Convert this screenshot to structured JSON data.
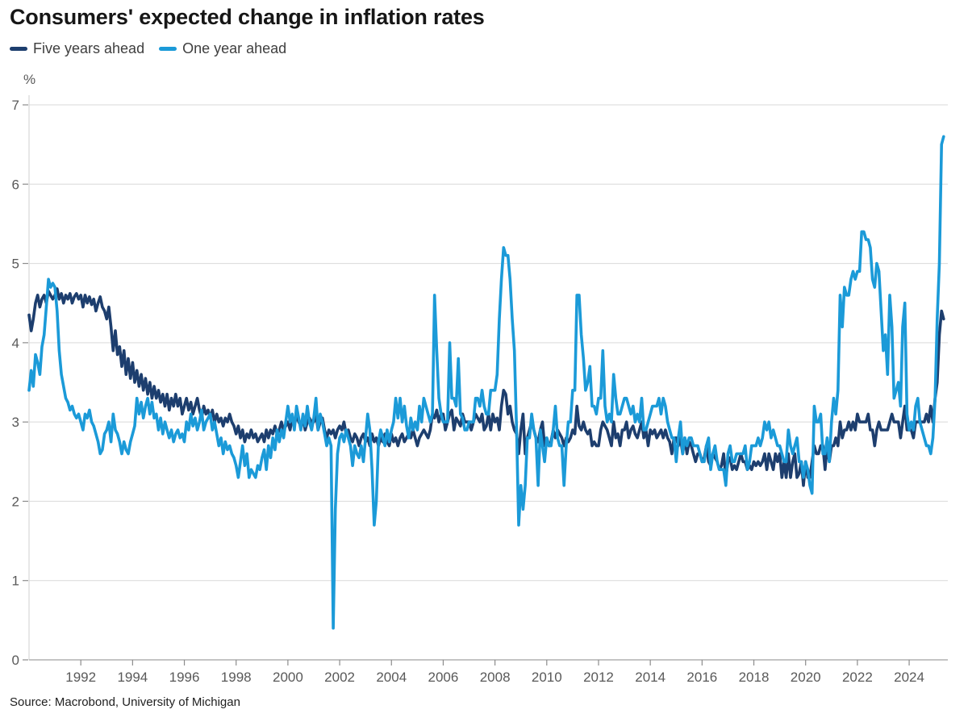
{
  "header": {
    "title": "Consumers' expected change in inflation rates"
  },
  "footer": {
    "source": "Source: Macrobond, University of Michigan"
  },
  "chart_data": {
    "type": "line",
    "title": "Consumers' expected change in inflation rates",
    "unit_label": "%",
    "source": "Source: Macrobond, University of Michigan",
    "legend_position": "top-left",
    "grid": "horizontal",
    "x_axis": {
      "min": 1990,
      "max": 2025.6,
      "ticks": [
        1992,
        1994,
        1996,
        1998,
        2000,
        2002,
        2004,
        2006,
        2008,
        2010,
        2012,
        2014,
        2016,
        2018,
        2020,
        2022,
        2024
      ]
    },
    "y_axis": {
      "min": 0,
      "max": 7,
      "label": "%",
      "ticks": [
        0,
        1,
        2,
        3,
        4,
        5,
        6,
        7
      ]
    },
    "series": [
      {
        "name": "Five years ahead",
        "color": "#1d3e6e",
        "start_year": 1990,
        "frequency": "monthly",
        "values": [
          4.35,
          4.15,
          4.3,
          4.5,
          4.6,
          4.45,
          4.55,
          4.6,
          4.5,
          4.65,
          4.6,
          4.55,
          4.6,
          4.68,
          4.55,
          4.62,
          4.5,
          4.6,
          4.55,
          4.62,
          4.5,
          4.58,
          4.62,
          4.55,
          4.6,
          4.45,
          4.6,
          4.5,
          4.58,
          4.48,
          4.55,
          4.4,
          4.5,
          4.58,
          4.45,
          4.4,
          4.3,
          4.45,
          4.2,
          3.9,
          4.15,
          3.85,
          3.95,
          3.7,
          3.9,
          3.6,
          3.8,
          3.55,
          3.75,
          3.5,
          3.65,
          3.45,
          3.6,
          3.4,
          3.55,
          3.35,
          3.5,
          3.3,
          3.45,
          3.3,
          3.4,
          3.25,
          3.35,
          3.2,
          3.35,
          3.15,
          3.3,
          3.2,
          3.35,
          3.2,
          3.3,
          3.1,
          3.2,
          3.3,
          3.15,
          3.25,
          3.1,
          3.2,
          3.3,
          3.15,
          3.05,
          3.2,
          3.1,
          3.15,
          3.05,
          3.15,
          3.0,
          3.1,
          3.0,
          3.05,
          2.95,
          3.05,
          3.0,
          3.1,
          3.0,
          2.95,
          2.85,
          2.95,
          2.8,
          2.9,
          2.75,
          2.85,
          2.8,
          2.9,
          2.8,
          2.85,
          2.75,
          2.8,
          2.85,
          2.75,
          2.9,
          2.8,
          2.9,
          2.85,
          2.95,
          2.85,
          2.9,
          3.0,
          2.9,
          2.95,
          3.0,
          2.9,
          3.05,
          2.95,
          3.1,
          3.0,
          2.95,
          3.05,
          2.9,
          3.0,
          3.05,
          3.0,
          3.0,
          3.1,
          2.9,
          3.0,
          3.05,
          2.9,
          2.8,
          2.9,
          2.85,
          2.9,
          2.8,
          2.9,
          2.95,
          2.9,
          3.0,
          2.85,
          2.9,
          2.8,
          2.75,
          2.85,
          2.8,
          2.7,
          2.8,
          2.85,
          2.75,
          2.8,
          2.7,
          2.85,
          2.75,
          2.8,
          2.7,
          2.8,
          2.75,
          2.85,
          2.75,
          2.7,
          2.85,
          2.75,
          2.8,
          2.7,
          2.8,
          2.85,
          2.75,
          2.8,
          2.85,
          2.8,
          2.9,
          2.8,
          2.7,
          2.8,
          2.85,
          2.9,
          2.85,
          2.8,
          2.9,
          3.1,
          3.05,
          3.15,
          3.0,
          3.1,
          3.1,
          2.9,
          3.0,
          3.1,
          3.15,
          2.9,
          3.05,
          3.0,
          2.95,
          3.1,
          3.0,
          3.0,
          3.0,
          2.9,
          3.0,
          3.1,
          3.05,
          3.0,
          3.1,
          2.9,
          2.95,
          3.1,
          2.9,
          3.1,
          3.0,
          3.05,
          2.9,
          3.2,
          3.4,
          3.35,
          3.1,
          3.2,
          3.0,
          2.9,
          2.85,
          2.6,
          2.9,
          3.1,
          2.6,
          2.8,
          2.9,
          3.0,
          2.9,
          2.8,
          2.75,
          2.9,
          3.0,
          2.7,
          2.8,
          2.7,
          2.75,
          2.9,
          2.8,
          2.9,
          2.85,
          2.8,
          2.7,
          2.8,
          2.75,
          2.8,
          2.9,
          2.85,
          3.2,
          2.95,
          2.9,
          3.0,
          2.9,
          2.85,
          2.9,
          2.7,
          2.75,
          2.7,
          2.7,
          2.9,
          3.0,
          2.95,
          2.9,
          2.8,
          2.7,
          3.0,
          2.8,
          2.85,
          2.7,
          2.9,
          2.9,
          3.0,
          2.8,
          2.9,
          2.95,
          2.85,
          2.8,
          2.9,
          3.0,
          2.8,
          2.9,
          2.7,
          2.9,
          2.85,
          2.9,
          2.8,
          2.85,
          2.9,
          2.8,
          2.9,
          2.8,
          2.75,
          2.6,
          2.8,
          2.8,
          2.7,
          2.8,
          2.6,
          2.8,
          2.6,
          2.75,
          2.7,
          2.6,
          2.5,
          2.6,
          2.6,
          2.5,
          2.55,
          2.7,
          2.5,
          2.45,
          2.6,
          2.55,
          2.5,
          2.4,
          2.45,
          2.6,
          2.3,
          2.5,
          2.55,
          2.4,
          2.45,
          2.4,
          2.5,
          2.6,
          2.5,
          2.5,
          2.4,
          2.45,
          2.4,
          2.5,
          2.45,
          2.5,
          2.45,
          2.5,
          2.6,
          2.4,
          2.6,
          2.5,
          2.4,
          2.6,
          2.5,
          2.6,
          2.3,
          2.5,
          2.3,
          2.6,
          2.3,
          2.5,
          2.6,
          2.3,
          2.35,
          2.5,
          2.2,
          2.5,
          2.3,
          2.3,
          2.5,
          2.7,
          2.6,
          2.6,
          2.7,
          2.7,
          2.4,
          2.7,
          2.5,
          2.7,
          2.7,
          2.8,
          2.7,
          3.0,
          2.8,
          2.9,
          2.9,
          3.0,
          2.9,
          3.0,
          2.9,
          3.1,
          3.0,
          3.0,
          3.0,
          3.0,
          3.1,
          2.9,
          2.9,
          2.7,
          2.9,
          3.0,
          2.9,
          2.9,
          2.9,
          2.9,
          3.0,
          3.1,
          3.0,
          3.0,
          3.0,
          2.8,
          3.0,
          3.2,
          2.9,
          2.9,
          2.9,
          2.8,
          3.0,
          3.0,
          3.0,
          3.0,
          3.0,
          3.1,
          3.0,
          3.2,
          3.0,
          3.3,
          3.5,
          4.1,
          4.4,
          4.3
        ]
      },
      {
        "name": "One year ahead",
        "color": "#1b9ad8",
        "start_year": 1990,
        "frequency": "monthly",
        "values": [
          3.4,
          3.65,
          3.45,
          3.85,
          3.75,
          3.6,
          3.95,
          4.1,
          4.45,
          4.8,
          4.7,
          4.75,
          4.7,
          4.4,
          3.9,
          3.6,
          3.45,
          3.3,
          3.25,
          3.15,
          3.2,
          3.1,
          3.05,
          3.1,
          3.0,
          2.9,
          3.1,
          3.05,
          3.15,
          3.0,
          2.95,
          2.85,
          2.75,
          2.6,
          2.65,
          2.85,
          2.9,
          3.0,
          2.75,
          3.1,
          2.9,
          2.85,
          2.75,
          2.6,
          2.75,
          2.65,
          2.6,
          2.75,
          2.85,
          2.95,
          3.3,
          3.1,
          3.25,
          3.05,
          3.2,
          3.3,
          3.1,
          3.25,
          3.05,
          3.1,
          2.9,
          3.05,
          2.85,
          3.0,
          2.9,
          2.8,
          2.9,
          2.75,
          2.85,
          2.9,
          2.8,
          2.85,
          2.75,
          3.0,
          2.9,
          3.1,
          2.95,
          3.05,
          2.9,
          3.0,
          3.15,
          2.9,
          3.0,
          3.05,
          3.1,
          2.9,
          3.0,
          2.85,
          2.7,
          2.8,
          2.6,
          2.75,
          2.65,
          2.7,
          2.6,
          2.55,
          2.45,
          2.3,
          2.5,
          2.7,
          2.45,
          2.6,
          2.3,
          2.4,
          2.35,
          2.3,
          2.45,
          2.4,
          2.55,
          2.65,
          2.4,
          2.7,
          2.55,
          2.8,
          2.65,
          2.9,
          2.75,
          2.9,
          2.8,
          3.0,
          3.2,
          3.0,
          3.1,
          2.9,
          3.2,
          3.05,
          2.9,
          3.1,
          2.95,
          3.2,
          3.0,
          2.9,
          3.05,
          3.3,
          2.9,
          3.1,
          3.0,
          2.85,
          2.7,
          2.8,
          2.7,
          0.4,
          1.9,
          2.6,
          2.8,
          2.85,
          2.75,
          2.9,
          2.8,
          2.7,
          2.45,
          2.7,
          2.6,
          2.55,
          2.7,
          2.5,
          2.8,
          3.1,
          2.9,
          2.4,
          1.7,
          2.0,
          2.75,
          2.9,
          2.8,
          2.7,
          2.9,
          2.75,
          2.9,
          3.0,
          3.3,
          3.05,
          3.3,
          3.0,
          3.2,
          2.95,
          2.8,
          3.05,
          2.9,
          3.0,
          2.9,
          3.2,
          3.0,
          3.3,
          3.2,
          3.1,
          3.0,
          3.1,
          4.6,
          3.9,
          3.3,
          3.1,
          3.0,
          3.0,
          3.0,
          4.0,
          3.3,
          3.3,
          3.2,
          3.8,
          3.1,
          3.05,
          2.9,
          2.9,
          3.0,
          3.0,
          3.0,
          3.3,
          3.3,
          3.2,
          3.4,
          3.2,
          3.1,
          3.1,
          3.4,
          3.4,
          3.4,
          3.6,
          4.3,
          4.8,
          5.2,
          5.1,
          5.1,
          4.8,
          4.3,
          3.9,
          2.9,
          1.7,
          2.2,
          1.9,
          2.2,
          2.8,
          2.8,
          3.1,
          2.9,
          2.8,
          2.2,
          2.9,
          2.7,
          2.5,
          2.8,
          2.7,
          2.7,
          2.9,
          3.2,
          2.8,
          2.7,
          2.7,
          2.2,
          2.7,
          3.0,
          3.0,
          3.4,
          3.4,
          4.6,
          4.6,
          4.1,
          3.8,
          3.4,
          3.5,
          3.7,
          3.2,
          3.2,
          3.1,
          3.3,
          3.3,
          3.9,
          3.2,
          3.0,
          3.1,
          3.0,
          3.6,
          3.3,
          3.1,
          3.1,
          3.2,
          3.3,
          3.3,
          3.2,
          3.1,
          3.2,
          3.0,
          3.1,
          3.0,
          3.3,
          2.9,
          2.9,
          3.0,
          3.1,
          3.2,
          3.2,
          3.2,
          3.3,
          3.1,
          3.3,
          3.2,
          3.0,
          2.9,
          2.8,
          2.8,
          2.5,
          2.8,
          3.0,
          2.6,
          2.8,
          2.7,
          2.8,
          2.8,
          2.7,
          2.7,
          2.7,
          2.6,
          2.5,
          2.5,
          2.7,
          2.8,
          2.4,
          2.6,
          2.7,
          2.5,
          2.4,
          2.4,
          2.4,
          2.2,
          2.6,
          2.7,
          2.5,
          2.5,
          2.6,
          2.6,
          2.6,
          2.6,
          2.7,
          2.4,
          2.5,
          2.7,
          2.7,
          2.7,
          2.8,
          2.7,
          2.8,
          3.0,
          2.9,
          3.0,
          2.8,
          2.9,
          2.8,
          2.7,
          2.7,
          2.6,
          2.5,
          2.5,
          2.9,
          2.7,
          2.6,
          2.7,
          2.8,
          2.5,
          2.5,
          2.3,
          2.5,
          2.4,
          2.2,
          2.1,
          3.2,
          3.0,
          3.0,
          3.1,
          2.6,
          2.6,
          2.8,
          2.5,
          3.0,
          3.3,
          3.1,
          3.4,
          4.6,
          4.2,
          4.7,
          4.6,
          4.6,
          4.8,
          4.9,
          4.8,
          4.9,
          4.9,
          5.4,
          5.4,
          5.3,
          5.3,
          5.2,
          4.8,
          4.7,
          5.0,
          4.9,
          4.4,
          3.9,
          4.1,
          3.6,
          4.6,
          4.2,
          3.3,
          3.4,
          3.5,
          3.2,
          4.2,
          4.5,
          3.1,
          2.9,
          3.0,
          2.9,
          3.2,
          3.3,
          3.0,
          2.9,
          2.8,
          2.7,
          2.7,
          2.6,
          2.8,
          3.3,
          4.3,
          5.0,
          6.5,
          6.6
        ]
      }
    ]
  }
}
